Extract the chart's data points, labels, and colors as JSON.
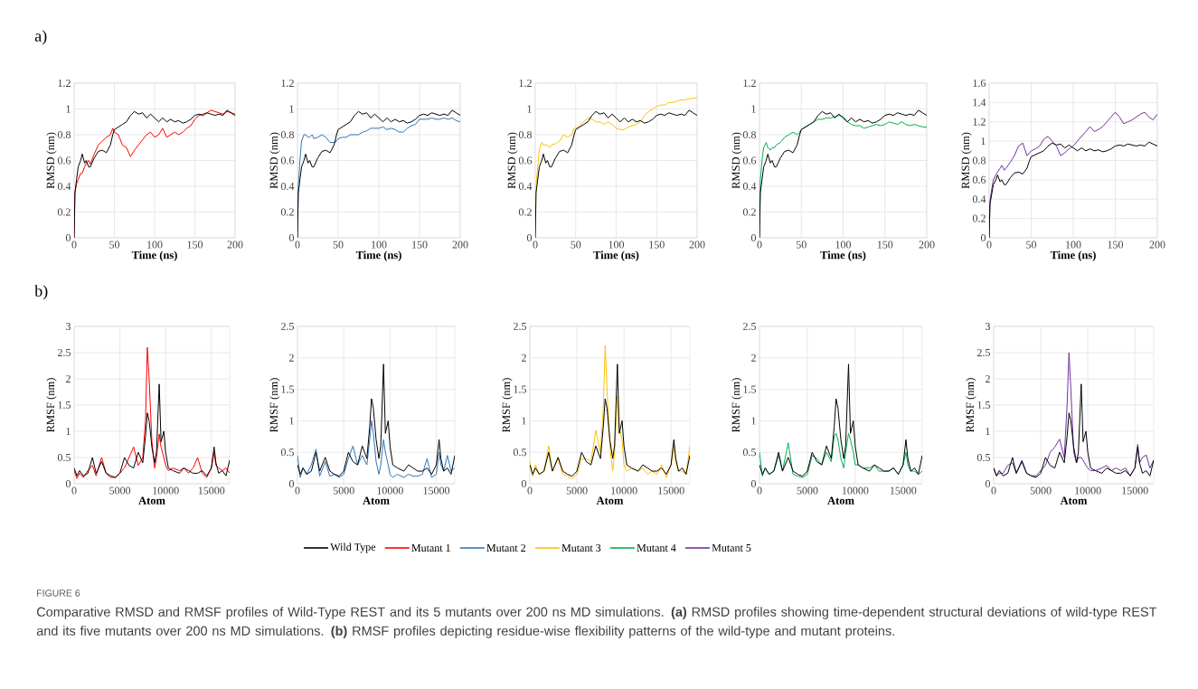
{
  "chart_data": [
    {
      "type": "line",
      "xlabel": "Time (ns)",
      "ylabel": "RMSD (nm)",
      "xlim": [
        0,
        200
      ],
      "ylim": [
        0,
        1.2
      ],
      "xticks": [
        0,
        50,
        100,
        150,
        200
      ],
      "yticks": [
        0,
        0.2,
        0.4,
        0.6,
        0.8,
        1,
        1.2
      ],
      "grid": true,
      "legend": "bottom",
      "x": [
        0,
        1,
        3,
        5,
        8,
        10,
        13,
        15,
        18,
        20,
        25,
        30,
        35,
        40,
        45,
        48,
        50,
        55,
        60,
        65,
        70,
        75,
        80,
        85,
        90,
        95,
        100,
        105,
        110,
        115,
        120,
        125,
        130,
        135,
        140,
        145,
        150,
        155,
        160,
        165,
        170,
        175,
        180,
        185,
        190,
        195,
        200
      ],
      "annotations": [
        "a)",
        "FIGURE 6",
        "Comparative RMSD and RMSF profiles of Wild-Type REST and its 5 mutants over 200 ns MD simulations. **(a)** RMSD profiles showing time-dependent structural deviations of wild-type REST and its five mutants over 200 ns MD simulations. **(b)** RMSF profiles depicting residue-wise flexibility patterns of the wild-type and mutant proteins."
      ],
      "series": [
        {
          "name": "Wild Type",
          "color": "#000000",
          "values": [
            0,
            0.35,
            0.45,
            0.55,
            0.6,
            0.65,
            0.58,
            0.6,
            0.55,
            0.55,
            0.62,
            0.67,
            0.68,
            0.66,
            0.72,
            0.8,
            0.84,
            0.86,
            0.88,
            0.9,
            0.95,
            0.98,
            0.96,
            0.97,
            0.93,
            0.96,
            0.93,
            0.9,
            0.93,
            0.9,
            0.92,
            0.9,
            0.91,
            0.89,
            0.9,
            0.92,
            0.95,
            0.96,
            0.95,
            0.97,
            0.96,
            0.95,
            0.96,
            0.95,
            0.99,
            0.97,
            0.95
          ]
        },
        {
          "name": "Mutant 1",
          "color": "#ff0000",
          "values": [
            0,
            0.35,
            0.42,
            0.45,
            0.5,
            0.5,
            0.55,
            0.58,
            0.6,
            0.57,
            0.65,
            0.72,
            0.75,
            0.78,
            0.8,
            0.85,
            0.82,
            0.8,
            0.72,
            0.7,
            0.63,
            0.68,
            0.72,
            0.76,
            0.8,
            0.82,
            0.78,
            0.8,
            0.85,
            0.78,
            0.8,
            0.82,
            0.8,
            0.82,
            0.85,
            0.87,
            0.92,
            0.95,
            0.96,
            0.97,
            0.99,
            0.98,
            0.97,
            0.96,
            0.98,
            0.97,
            0.96
          ]
        }
      ]
    },
    {
      "type": "line",
      "xlabel": "Time (ns)",
      "ylabel": "RMSD (nm)",
      "xlim": [
        0,
        200
      ],
      "ylim": [
        0,
        1.2
      ],
      "xticks": [
        0,
        50,
        100,
        150,
        200
      ],
      "yticks": [
        0,
        0.2,
        0.4,
        0.6,
        0.8,
        1,
        1.2
      ],
      "grid": true,
      "legend": "bottom",
      "x": [
        0,
        1,
        3,
        5,
        8,
        10,
        13,
        15,
        18,
        20,
        25,
        30,
        35,
        40,
        45,
        48,
        50,
        55,
        60,
        65,
        70,
        75,
        80,
        85,
        90,
        95,
        100,
        105,
        110,
        115,
        120,
        125,
        130,
        135,
        140,
        145,
        150,
        155,
        160,
        165,
        170,
        175,
        180,
        185,
        190,
        195,
        200
      ],
      "series": [
        {
          "color": "#000000",
          "values": [
            0,
            0.35,
            0.45,
            0.55,
            0.6,
            0.65,
            0.58,
            0.6,
            0.55,
            0.55,
            0.62,
            0.67,
            0.68,
            0.66,
            0.72,
            0.8,
            0.84,
            0.86,
            0.88,
            0.9,
            0.95,
            0.98,
            0.96,
            0.97,
            0.93,
            0.96,
            0.93,
            0.9,
            0.93,
            0.9,
            0.92,
            0.9,
            0.91,
            0.89,
            0.9,
            0.92,
            0.95,
            0.96,
            0.95,
            0.97,
            0.96,
            0.95,
            0.96,
            0.95,
            0.99,
            0.97,
            0.95
          ]
        },
        {
          "name": "Mutant 2",
          "color": "#2e75b6",
          "values": [
            0,
            0.4,
            0.6,
            0.75,
            0.8,
            0.8,
            0.78,
            0.78,
            0.8,
            0.77,
            0.78,
            0.8,
            0.78,
            0.74,
            0.74,
            0.75,
            0.77,
            0.78,
            0.78,
            0.8,
            0.8,
            0.8,
            0.82,
            0.83,
            0.85,
            0.85,
            0.85,
            0.86,
            0.84,
            0.85,
            0.84,
            0.82,
            0.82,
            0.85,
            0.87,
            0.88,
            0.92,
            0.92,
            0.92,
            0.93,
            0.92,
            0.92,
            0.93,
            0.92,
            0.93,
            0.91,
            0.9
          ]
        }
      ]
    },
    {
      "type": "line",
      "xlabel": "Time (ns)",
      "ylabel": "RMSD (nm)",
      "xlim": [
        0,
        200
      ],
      "ylim": [
        0,
        1.2
      ],
      "xticks": [
        0,
        50,
        100,
        150,
        200
      ],
      "yticks": [
        0,
        0.2,
        0.4,
        0.6,
        0.8,
        1,
        1.2
      ],
      "grid": true,
      "legend": "bottom",
      "x": [
        0,
        1,
        3,
        5,
        8,
        10,
        13,
        15,
        18,
        20,
        25,
        30,
        35,
        40,
        45,
        48,
        50,
        55,
        60,
        65,
        70,
        75,
        80,
        85,
        90,
        95,
        100,
        105,
        110,
        115,
        120,
        125,
        130,
        135,
        140,
        145,
        150,
        155,
        160,
        165,
        170,
        175,
        180,
        185,
        190,
        195,
        200
      ],
      "series": [
        {
          "color": "#000000",
          "values": [
            0,
            0.35,
            0.45,
            0.55,
            0.6,
            0.65,
            0.58,
            0.6,
            0.55,
            0.55,
            0.62,
            0.67,
            0.68,
            0.66,
            0.72,
            0.8,
            0.84,
            0.86,
            0.88,
            0.9,
            0.95,
            0.98,
            0.96,
            0.97,
            0.93,
            0.96,
            0.93,
            0.9,
            0.93,
            0.9,
            0.92,
            0.9,
            0.91,
            0.89,
            0.9,
            0.92,
            0.95,
            0.96,
            0.95,
            0.97,
            0.96,
            0.95,
            0.96,
            0.95,
            0.99,
            0.97,
            0.95
          ]
        },
        {
          "name": "Mutant 3",
          "color": "#ffc000",
          "values": [
            0,
            0.4,
            0.55,
            0.68,
            0.74,
            0.72,
            0.72,
            0.72,
            0.7,
            0.72,
            0.73,
            0.75,
            0.8,
            0.78,
            0.8,
            0.85,
            0.85,
            0.87,
            0.9,
            0.93,
            0.92,
            0.9,
            0.9,
            0.88,
            0.9,
            0.88,
            0.85,
            0.84,
            0.84,
            0.86,
            0.87,
            0.88,
            0.9,
            0.95,
            0.98,
            1.0,
            1.02,
            1.03,
            1.03,
            1.05,
            1.05,
            1.06,
            1.07,
            1.07,
            1.08,
            1.08,
            1.09
          ]
        }
      ]
    },
    {
      "type": "line",
      "xlabel": "Time (ns)",
      "ylabel": "RMSD (nm)",
      "xlim": [
        0,
        200
      ],
      "ylim": [
        0,
        1.2
      ],
      "xticks": [
        0,
        50,
        100,
        150,
        200
      ],
      "yticks": [
        0,
        0.2,
        0.4,
        0.6,
        0.8,
        1,
        1.2
      ],
      "grid": true,
      "legend": "bottom",
      "x": [
        0,
        1,
        3,
        5,
        8,
        10,
        13,
        15,
        18,
        20,
        25,
        30,
        35,
        40,
        45,
        48,
        50,
        55,
        60,
        65,
        70,
        75,
        80,
        85,
        90,
        95,
        100,
        105,
        110,
        115,
        120,
        125,
        130,
        135,
        140,
        145,
        150,
        155,
        160,
        165,
        170,
        175,
        180,
        185,
        190,
        195,
        200
      ],
      "series": [
        {
          "color": "#000000",
          "values": [
            0,
            0.35,
            0.45,
            0.55,
            0.6,
            0.65,
            0.58,
            0.6,
            0.55,
            0.55,
            0.62,
            0.67,
            0.68,
            0.66,
            0.72,
            0.8,
            0.84,
            0.86,
            0.88,
            0.9,
            0.95,
            0.98,
            0.96,
            0.97,
            0.93,
            0.96,
            0.93,
            0.9,
            0.93,
            0.9,
            0.92,
            0.9,
            0.91,
            0.89,
            0.9,
            0.92,
            0.95,
            0.96,
            0.95,
            0.97,
            0.96,
            0.95,
            0.96,
            0.95,
            0.99,
            0.97,
            0.95
          ]
        },
        {
          "name": "Mutant 4",
          "color": "#00b050",
          "values": [
            0,
            0.45,
            0.6,
            0.7,
            0.74,
            0.7,
            0.68,
            0.7,
            0.7,
            0.72,
            0.74,
            0.78,
            0.8,
            0.82,
            0.8,
            0.82,
            0.84,
            0.86,
            0.88,
            0.9,
            0.92,
            0.92,
            0.93,
            0.93,
            0.94,
            0.95,
            0.94,
            0.9,
            0.88,
            0.87,
            0.87,
            0.85,
            0.86,
            0.87,
            0.88,
            0.87,
            0.88,
            0.9,
            0.89,
            0.88,
            0.9,
            0.88,
            0.87,
            0.88,
            0.87,
            0.86,
            0.86
          ]
        }
      ]
    },
    {
      "type": "line",
      "xlabel": "Time (ns)",
      "ylabel": "RMSD (nm)",
      "xlim": [
        0,
        200
      ],
      "ylim": [
        0,
        1.6
      ],
      "xticks": [
        0,
        50,
        100,
        150,
        200
      ],
      "yticks": [
        0,
        0.2,
        0.4,
        0.6,
        0.8,
        1,
        1.2,
        1.4,
        1.6
      ],
      "grid": true,
      "legend": "bottom",
      "x": [
        0,
        1,
        3,
        5,
        8,
        10,
        13,
        15,
        18,
        20,
        25,
        30,
        35,
        40,
        45,
        48,
        50,
        55,
        60,
        65,
        70,
        75,
        80,
        85,
        90,
        95,
        100,
        105,
        110,
        115,
        120,
        125,
        130,
        135,
        140,
        145,
        150,
        155,
        160,
        165,
        170,
        175,
        180,
        185,
        190,
        195,
        200
      ],
      "series": [
        {
          "color": "#000000",
          "values": [
            0,
            0.35,
            0.45,
            0.55,
            0.6,
            0.65,
            0.58,
            0.6,
            0.55,
            0.55,
            0.62,
            0.67,
            0.68,
            0.66,
            0.72,
            0.8,
            0.84,
            0.86,
            0.88,
            0.9,
            0.95,
            0.98,
            0.96,
            0.97,
            0.93,
            0.96,
            0.93,
            0.9,
            0.93,
            0.9,
            0.92,
            0.9,
            0.91,
            0.89,
            0.9,
            0.92,
            0.95,
            0.96,
            0.95,
            0.97,
            0.96,
            0.95,
            0.96,
            0.95,
            0.99,
            0.97,
            0.95
          ]
        },
        {
          "name": "Mutant 5",
          "color": "#7030a0",
          "values": [
            0,
            0.38,
            0.5,
            0.6,
            0.65,
            0.68,
            0.72,
            0.75,
            0.7,
            0.72,
            0.78,
            0.85,
            0.95,
            0.98,
            0.85,
            0.88,
            0.9,
            0.92,
            0.95,
            1.02,
            1.05,
            1.0,
            0.95,
            0.85,
            0.88,
            0.92,
            0.95,
            1.0,
            1.05,
            1.1,
            1.15,
            1.1,
            1.12,
            1.15,
            1.2,
            1.25,
            1.3,
            1.25,
            1.18,
            1.2,
            1.22,
            1.25,
            1.28,
            1.3,
            1.25,
            1.22,
            1.28
          ]
        }
      ]
    },
    {
      "type": "line",
      "xlabel": "Atom",
      "ylabel": "RMSF (nm)",
      "xlim": [
        0,
        17000
      ],
      "ylim": [
        0,
        3
      ],
      "xticks": [
        0,
        5000,
        10000,
        15000
      ],
      "yticks": [
        0,
        0.5,
        1,
        1.5,
        2,
        2.5,
        3
      ],
      "grid": true,
      "x": [
        0,
        300,
        600,
        1000,
        1500,
        2000,
        2400,
        3000,
        3500,
        4000,
        4500,
        5000,
        5500,
        6000,
        6500,
        7000,
        7500,
        7800,
        8000,
        8200,
        8500,
        8800,
        9000,
        9300,
        9500,
        9800,
        10000,
        10300,
        10800,
        11500,
        12000,
        12500,
        13000,
        13500,
        14000,
        14500,
        15000,
        15300,
        15500,
        15800,
        16200,
        16600,
        17000
      ],
      "annotations": [
        "b)"
      ],
      "series": [
        {
          "color": "#000000",
          "values": [
            0.3,
            0.15,
            0.25,
            0.15,
            0.2,
            0.5,
            0.2,
            0.42,
            0.2,
            0.15,
            0.12,
            0.2,
            0.5,
            0.35,
            0.3,
            0.6,
            0.4,
            0.9,
            1.35,
            1.2,
            0.7,
            0.4,
            0.6,
            1.9,
            0.8,
            1.0,
            0.6,
            0.3,
            0.25,
            0.2,
            0.3,
            0.25,
            0.2,
            0.2,
            0.25,
            0.15,
            0.3,
            0.7,
            0.4,
            0.2,
            0.25,
            0.15,
            0.45
          ]
        },
        {
          "color": "#ff0000",
          "values": [
            0.25,
            0.1,
            0.2,
            0.12,
            0.25,
            0.35,
            0.15,
            0.5,
            0.2,
            0.12,
            0.12,
            0.2,
            0.3,
            0.5,
            0.7,
            0.35,
            0.5,
            1.2,
            2.6,
            2.0,
            0.8,
            0.3,
            0.5,
            0.95,
            0.7,
            0.5,
            0.35,
            0.25,
            0.3,
            0.25,
            0.3,
            0.2,
            0.3,
            0.5,
            0.2,
            0.12,
            0.3,
            0.6,
            0.35,
            0.3,
            0.25,
            0.3,
            0.2
          ]
        }
      ]
    },
    {
      "type": "line",
      "xlabel": "Atom",
      "ylabel": "RMSF (nm)",
      "xlim": [
        0,
        17000
      ],
      "ylim": [
        0,
        2.5
      ],
      "xticks": [
        0,
        5000,
        10000,
        15000
      ],
      "yticks": [
        0,
        0.5,
        1,
        1.5,
        2,
        2.5
      ],
      "grid": true,
      "x": [
        0,
        300,
        600,
        1000,
        1500,
        2000,
        2400,
        3000,
        3500,
        4000,
        4500,
        5000,
        5500,
        6000,
        6500,
        7000,
        7500,
        7800,
        8000,
        8200,
        8500,
        8800,
        9000,
        9300,
        9500,
        9800,
        10000,
        10300,
        10800,
        11500,
        12000,
        12500,
        13000,
        13500,
        14000,
        14500,
        15000,
        15300,
        15500,
        15800,
        16200,
        16600,
        17000
      ],
      "series": [
        {
          "color": "#000000",
          "values": [
            0.3,
            0.15,
            0.25,
            0.15,
            0.2,
            0.5,
            0.2,
            0.42,
            0.2,
            0.15,
            0.12,
            0.2,
            0.5,
            0.35,
            0.3,
            0.6,
            0.4,
            0.9,
            1.35,
            1.2,
            0.7,
            0.4,
            0.6,
            1.9,
            0.8,
            1.0,
            0.6,
            0.3,
            0.25,
            0.2,
            0.3,
            0.25,
            0.2,
            0.2,
            0.25,
            0.15,
            0.3,
            0.7,
            0.4,
            0.2,
            0.25,
            0.15,
            0.45
          ]
        },
        {
          "color": "#2e75b6",
          "values": [
            0.45,
            0.1,
            0.25,
            0.15,
            0.3,
            0.55,
            0.12,
            0.35,
            0.12,
            0.15,
            0.1,
            0.15,
            0.4,
            0.6,
            0.3,
            0.45,
            0.3,
            0.7,
            1.0,
            0.8,
            0.35,
            0.15,
            0.3,
            0.7,
            0.5,
            0.3,
            0.15,
            0.1,
            0.15,
            0.1,
            0.15,
            0.12,
            0.12,
            0.15,
            0.4,
            0.1,
            0.15,
            0.5,
            0.3,
            0.2,
            0.45,
            0.2,
            0.25
          ]
        }
      ]
    },
    {
      "type": "line",
      "xlabel": "Atom",
      "ylabel": "RMSF (nm)",
      "xlim": [
        0,
        17000
      ],
      "ylim": [
        0,
        2.5
      ],
      "xticks": [
        0,
        5000,
        10000,
        15000
      ],
      "yticks": [
        0,
        0.5,
        1,
        1.5,
        2,
        2.5
      ],
      "grid": true,
      "x": [
        0,
        300,
        600,
        1000,
        1500,
        2000,
        2400,
        3000,
        3500,
        4000,
        4500,
        5000,
        5500,
        6000,
        6500,
        7000,
        7500,
        7800,
        8000,
        8200,
        8500,
        8800,
        9000,
        9300,
        9500,
        9800,
        10000,
        10300,
        10800,
        11500,
        12000,
        12500,
        13000,
        13500,
        14000,
        14500,
        15000,
        15300,
        15500,
        15800,
        16200,
        16600,
        17000
      ],
      "series": [
        {
          "color": "#000000",
          "values": [
            0.3,
            0.15,
            0.25,
            0.15,
            0.2,
            0.5,
            0.2,
            0.42,
            0.2,
            0.15,
            0.12,
            0.2,
            0.5,
            0.35,
            0.3,
            0.6,
            0.4,
            0.9,
            1.35,
            1.2,
            0.7,
            0.4,
            0.6,
            1.9,
            0.8,
            1.0,
            0.6,
            0.3,
            0.25,
            0.2,
            0.3,
            0.25,
            0.2,
            0.2,
            0.25,
            0.15,
            0.3,
            0.7,
            0.4,
            0.2,
            0.25,
            0.15,
            0.45
          ]
        },
        {
          "color": "#ffc000",
          "values": [
            0.35,
            0.12,
            0.3,
            0.15,
            0.2,
            0.6,
            0.2,
            0.4,
            0.15,
            0.12,
            0.08,
            0.15,
            0.4,
            0.4,
            0.35,
            0.85,
            0.5,
            1.2,
            2.2,
            1.5,
            0.6,
            0.2,
            0.5,
            1.4,
            0.9,
            0.7,
            0.3,
            0.2,
            0.25,
            0.2,
            0.25,
            0.15,
            0.2,
            0.15,
            0.3,
            0.1,
            0.3,
            0.6,
            0.35,
            0.2,
            0.2,
            0.15,
            0.6
          ]
        }
      ]
    },
    {
      "type": "line",
      "xlabel": "Atom",
      "ylabel": "RMSF (nm)",
      "xlim": [
        0,
        17000
      ],
      "ylim": [
        0,
        2.5
      ],
      "xticks": [
        0,
        5000,
        10000,
        15000
      ],
      "yticks": [
        0,
        0.5,
        1,
        1.5,
        2,
        2.5
      ],
      "grid": true,
      "x": [
        0,
        300,
        600,
        1000,
        1500,
        2000,
        2400,
        3000,
        3500,
        4000,
        4500,
        5000,
        5500,
        6000,
        6500,
        7000,
        7500,
        7800,
        8000,
        8200,
        8500,
        8800,
        9000,
        9300,
        9500,
        9800,
        10000,
        10300,
        10800,
        11500,
        12000,
        12500,
        13000,
        13500,
        14000,
        14500,
        15000,
        15300,
        15500,
        15800,
        16200,
        16600,
        17000
      ],
      "series": [
        {
          "color": "#000000",
          "values": [
            0.3,
            0.15,
            0.25,
            0.15,
            0.2,
            0.5,
            0.2,
            0.42,
            0.2,
            0.15,
            0.12,
            0.2,
            0.5,
            0.35,
            0.3,
            0.6,
            0.4,
            0.9,
            1.35,
            1.2,
            0.7,
            0.4,
            0.6,
            1.9,
            0.8,
            1.0,
            0.6,
            0.3,
            0.25,
            0.2,
            0.3,
            0.25,
            0.2,
            0.2,
            0.25,
            0.15,
            0.3,
            0.7,
            0.4,
            0.2,
            0.25,
            0.15,
            0.45
          ]
        },
        {
          "color": "#00b050",
          "values": [
            0.5,
            0.12,
            0.25,
            0.15,
            0.2,
            0.45,
            0.2,
            0.65,
            0.15,
            0.12,
            0.1,
            0.15,
            0.45,
            0.4,
            0.3,
            0.5,
            0.35,
            0.75,
            0.8,
            0.7,
            0.4,
            0.25,
            0.5,
            0.8,
            0.7,
            0.5,
            0.3,
            0.3,
            0.25,
            0.25,
            0.3,
            0.2,
            0.2,
            0.2,
            0.25,
            0.15,
            0.3,
            0.5,
            0.3,
            0.2,
            0.2,
            0.15,
            0.2
          ]
        }
      ]
    },
    {
      "type": "line",
      "xlabel": "Atom",
      "ylabel": "RMSF (nm)",
      "xlim": [
        0,
        17000
      ],
      "ylim": [
        0,
        3
      ],
      "xticks": [
        0,
        5000,
        10000,
        15000
      ],
      "yticks": [
        0,
        0.5,
        1,
        1.5,
        2,
        2.5,
        3
      ],
      "grid": true,
      "x": [
        0,
        300,
        600,
        1000,
        1500,
        2000,
        2400,
        3000,
        3500,
        4000,
        4500,
        5000,
        5500,
        6000,
        6500,
        7000,
        7500,
        7800,
        8000,
        8200,
        8500,
        8800,
        9000,
        9300,
        9500,
        9800,
        10000,
        10300,
        10800,
        11500,
        12000,
        12500,
        13000,
        13500,
        14000,
        14500,
        15000,
        15300,
        15500,
        15800,
        16200,
        16600,
        17000
      ],
      "series": [
        {
          "color": "#000000",
          "values": [
            0.3,
            0.15,
            0.25,
            0.15,
            0.2,
            0.5,
            0.2,
            0.42,
            0.2,
            0.15,
            0.12,
            0.2,
            0.5,
            0.35,
            0.3,
            0.6,
            0.4,
            0.9,
            1.35,
            1.2,
            0.7,
            0.4,
            0.6,
            1.9,
            0.8,
            1.0,
            0.6,
            0.3,
            0.25,
            0.2,
            0.3,
            0.25,
            0.2,
            0.2,
            0.25,
            0.15,
            0.3,
            0.7,
            0.4,
            0.2,
            0.25,
            0.15,
            0.45
          ]
        },
        {
          "color": "#7030a0",
          "values": [
            0.3,
            0.15,
            0.2,
            0.2,
            0.35,
            0.4,
            0.2,
            0.45,
            0.2,
            0.15,
            0.15,
            0.25,
            0.35,
            0.6,
            0.7,
            0.85,
            0.5,
            1.5,
            2.5,
            1.8,
            0.6,
            0.4,
            0.5,
            0.5,
            0.45,
            0.35,
            0.3,
            0.25,
            0.25,
            0.3,
            0.35,
            0.25,
            0.3,
            0.25,
            0.3,
            0.15,
            0.3,
            0.75,
            0.4,
            0.5,
            0.55,
            0.3,
            0.45
          ]
        }
      ]
    }
  ]
}
